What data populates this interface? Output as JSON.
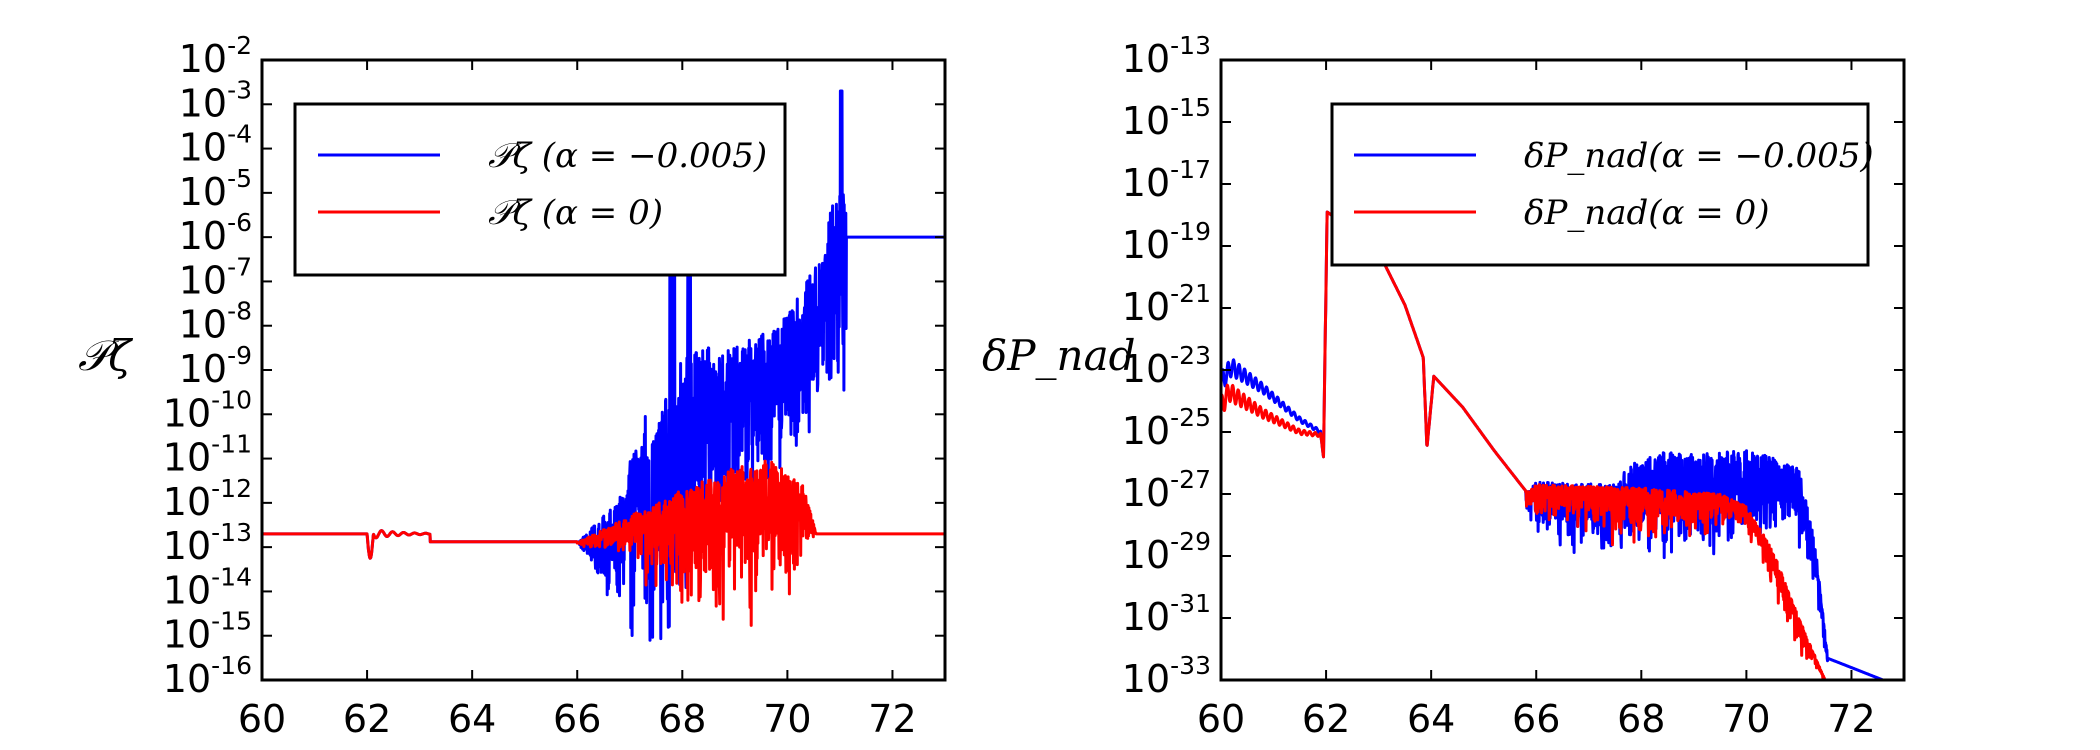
{
  "chart_data": [
    {
      "type": "line",
      "panel": "left",
      "ylabel": "𝒫ζ",
      "yscale": "log",
      "xlim": [
        60,
        73
      ],
      "ylim_exponent": [
        -16,
        -2
      ],
      "x_ticks": [
        "60",
        "62",
        "64",
        "66",
        "68",
        "70",
        "72"
      ],
      "y_ticks_exponent": [
        "-16",
        "-15",
        "-14",
        "-13",
        "-12",
        "-11",
        "-10",
        "-9",
        "-8",
        "-7",
        "-6",
        "-5",
        "-4",
        "-3",
        "-2"
      ],
      "legend_position": "top-left",
      "series": [
        {
          "name": "𝒫ζ (α = −0.005)",
          "color": "#0000ff",
          "description": "log10 values approximately: flat at -12.7 from 60 to 66; oscillations grow between 66 and 71 spanning roughly -15.9 to -2.7; constant at about -6.0 after 71.1",
          "key_points_x": [
            60,
            62.0,
            62.1,
            62.3,
            66,
            67,
            68,
            69,
            70,
            71,
            71.1,
            73
          ],
          "key_points_log10y": [
            -12.7,
            -12.7,
            -13.3,
            -12.8,
            -12.9,
            -14.5,
            -8.0,
            -8.5,
            -7.5,
            -4.5,
            -6.0,
            -6.0
          ]
        },
        {
          "name": "𝒫ζ (α = 0)",
          "color": "#ff0000",
          "description": "log10 values approximately: flat at -12.7 from 60 to 66; envelope rises to about -11.0 near 69.7 with dips down to -15.6; returns to -12.7 after 70.5",
          "key_points_x": [
            60,
            62.0,
            62.1,
            62.3,
            66,
            67,
            68,
            69,
            69.7,
            70.5,
            73
          ],
          "key_points_log10y": [
            -12.7,
            -12.7,
            -13.3,
            -12.8,
            -12.9,
            -12.4,
            -11.8,
            -11.3,
            -11.0,
            -12.7,
            -12.7
          ]
        }
      ]
    },
    {
      "type": "line",
      "panel": "right",
      "ylabel": "δP_nad",
      "yscale": "log",
      "xlim": [
        60,
        73
      ],
      "ylim_exponent": [
        -33,
        -13
      ],
      "x_ticks": [
        "60",
        "62",
        "64",
        "66",
        "68",
        "70",
        "72"
      ],
      "y_ticks_exponent": [
        "-33",
        "-31",
        "-29",
        "-27",
        "-25",
        "-23",
        "-21",
        "-19",
        "-17",
        "-15",
        "-13"
      ],
      "legend_position": "top-right",
      "series": [
        {
          "name": "δP_nad(α = −0.005)",
          "color": "#0000ff",
          "key_points_x": [
            60,
            60.2,
            61.5,
            61.9,
            62.0,
            62.1,
            63.0,
            63.8,
            63.9,
            64.0,
            65.8,
            66,
            68,
            70,
            71.0,
            71.6,
            72.6
          ],
          "key_points_log10y": [
            -23.5,
            -23.0,
            -24.6,
            -25.0,
            -17.9,
            -18.0,
            -19.1,
            -22.5,
            -25.5,
            -23.2,
            -27.0,
            -27.0,
            -26.0,
            -26.0,
            -26.5,
            -32.5,
            -33.0
          ]
        },
        {
          "name": "δP_nad(α = 0)",
          "color": "#ff0000",
          "key_points_x": [
            60,
            60.2,
            61.5,
            61.9,
            62.0,
            62.1,
            63.0,
            63.8,
            63.9,
            64.0,
            65.8,
            66,
            68,
            70,
            70.5,
            71.0,
            71.5,
            72.0
          ],
          "key_points_log10y": [
            -24.0,
            -23.8,
            -25.0,
            -25.1,
            -17.9,
            -18.0,
            -19.1,
            -22.5,
            -25.5,
            -23.2,
            -27.0,
            -26.8,
            -26.8,
            -27.0,
            -28.5,
            -32.0,
            -33.0,
            -33.2
          ]
        }
      ]
    }
  ]
}
